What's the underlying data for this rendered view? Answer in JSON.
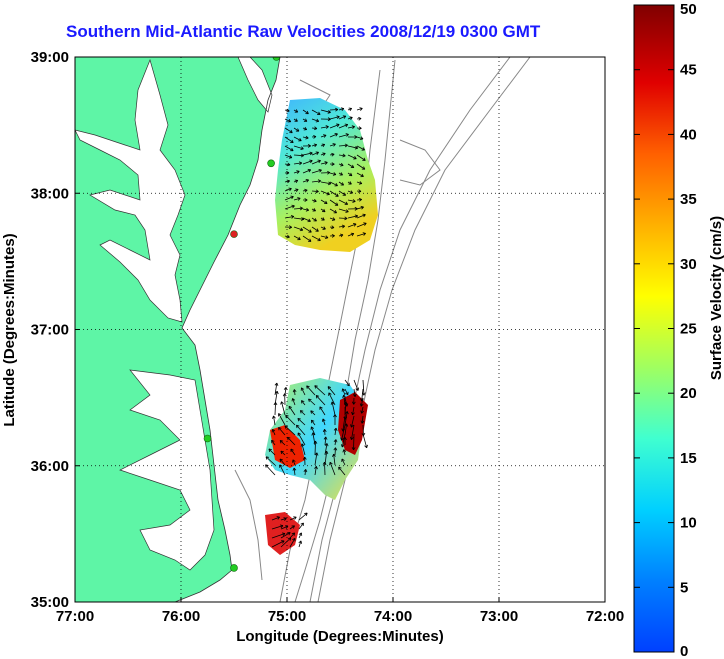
{
  "title": "Southern Mid-Atlantic Raw Velocities 2008/12/19 0300 GMT",
  "chart_data": {
    "type": "map",
    "xlabel": "Longitude (Degrees:Minutes)",
    "ylabel": "Latitude (Degrees:Minutes)",
    "xlim": [
      -77,
      -72
    ],
    "ylim": [
      35,
      39
    ],
    "xticks": [
      {
        "value": -77,
        "label": "77:00"
      },
      {
        "value": -76,
        "label": "76:00"
      },
      {
        "value": -75,
        "label": "75:00"
      },
      {
        "value": -74,
        "label": "74:00"
      },
      {
        "value": -73,
        "label": "73:00"
      },
      {
        "value": -72,
        "label": "72:00"
      }
    ],
    "yticks": [
      {
        "value": 35,
        "label": "35:00"
      },
      {
        "value": 36,
        "label": "36:00"
      },
      {
        "value": 37,
        "label": "37:00"
      },
      {
        "value": 38,
        "label": "38:00"
      },
      {
        "value": 39,
        "label": "39:00"
      }
    ],
    "grid": true,
    "land_color": "#5ef5a6",
    "colorbar": {
      "label": "Surface Velocity (cm/s)",
      "min": 0,
      "max": 50,
      "ticks": [
        0,
        5,
        10,
        15,
        20,
        25,
        30,
        35,
        40,
        45,
        50
      ],
      "colormap": "jet"
    },
    "radar_sites": [
      {
        "lon": -75.1,
        "lat": 39.0,
        "color": "#22cc22"
      },
      {
        "lon": -75.15,
        "lat": 38.22,
        "color": "#22cc22"
      },
      {
        "lon": -75.5,
        "lat": 37.7,
        "color": "#dd2222"
      },
      {
        "lon": -75.75,
        "lat": 36.2,
        "color": "#22cc22"
      },
      {
        "lon": -75.5,
        "lat": 35.25,
        "color": "#22cc22"
      }
    ]
  }
}
